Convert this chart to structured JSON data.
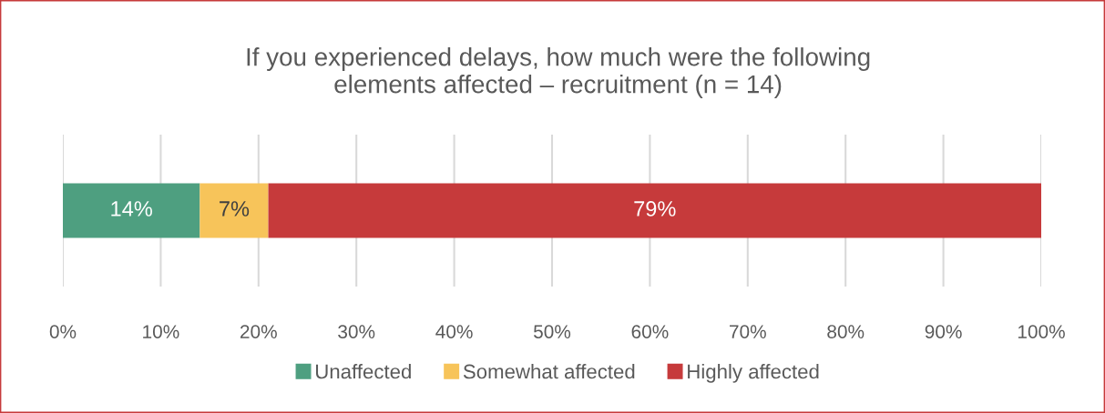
{
  "chart_data": {
    "type": "bar",
    "orientation": "horizontal",
    "stacked": true,
    "title": "If you experienced delays, how much were the following\nelements affected – recruitment (n = 14)",
    "categories": [
      null
    ],
    "series": [
      {
        "name": "Unaffected",
        "color": "#4e9f80",
        "values": [
          14
        ],
        "value_labels": [
          "14%"
        ]
      },
      {
        "name": "Somewhat affected",
        "color": "#f7c45a",
        "values": [
          7
        ],
        "value_labels": [
          "7%"
        ]
      },
      {
        "name": "Highly affected",
        "color": "#c63a3b",
        "values": [
          79
        ],
        "value_labels": [
          "79%"
        ]
      }
    ],
    "xlim": [
      0,
      100
    ],
    "xticks": [
      {
        "value": 0,
        "label": "0%"
      },
      {
        "value": 10,
        "label": "10%"
      },
      {
        "value": 20,
        "label": "20%"
      },
      {
        "value": 30,
        "label": "30%"
      },
      {
        "value": 40,
        "label": "40%"
      },
      {
        "value": 50,
        "label": "50%"
      },
      {
        "value": 60,
        "label": "60%"
      },
      {
        "value": 70,
        "label": "70%"
      },
      {
        "value": 80,
        "label": "80%"
      },
      {
        "value": 90,
        "label": "90%"
      },
      {
        "value": 100,
        "label": "100%"
      }
    ],
    "grid": "x",
    "legend": "bottom"
  }
}
